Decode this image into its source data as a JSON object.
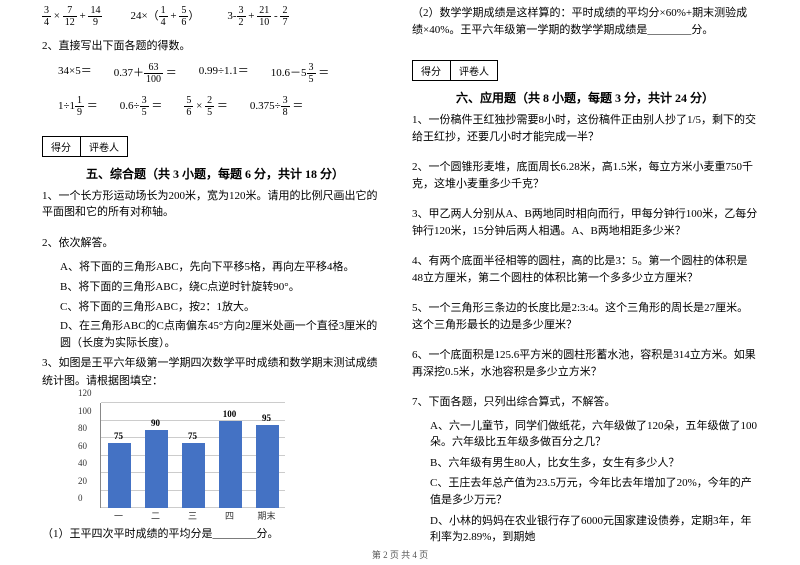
{
  "left": {
    "formulas_row1": [
      {
        "a_num": "3",
        "a_den": "4",
        "op1": "×",
        "b_num": "7",
        "b_den": "12",
        "op2": "+",
        "c_num": "14",
        "c_den": "9"
      },
      {
        "text_prefix": "24×（",
        "a_num": "1",
        "a_den": "4",
        "mid": " + ",
        "b_num": "5",
        "b_den": "6",
        "suffix": "）"
      },
      {
        "p1": "3-",
        "a_num": "3",
        "a_den": "2",
        "mid": " + ",
        "b_num": "21",
        "b_den": "10",
        "mid2": " - ",
        "c_num": "2",
        "c_den": "7"
      }
    ],
    "q2_title": "2、直接写出下面各题的得数。",
    "calc_row1": [
      "34×5＝",
      "0.37＋",
      "0.99÷1.1＝",
      "10.6－5"
    ],
    "calc_row1_frac1": {
      "num": "63",
      "den": "100"
    },
    "calc_row1_frac2": {
      "num": "3",
      "den": "5"
    },
    "calc_row2": [
      "1÷1",
      "0.6÷",
      "",
      "0.375÷"
    ],
    "calc_row2_fracA": {
      "num": "1",
      "den": "9"
    },
    "calc_row2_fracB": {
      "num": "3",
      "den": "5"
    },
    "calc_row2_fracC1": {
      "num": "5",
      "den": "6"
    },
    "calc_row2_fracC2": {
      "num": "2",
      "den": "5"
    },
    "calc_row2_fracD": {
      "num": "3",
      "den": "8"
    },
    "score_label1": "得分",
    "score_label2": "评卷人",
    "section5": "五、综合题（共 3 小题，每题 6 分，共计 18 分）",
    "q5_1": "1、一个长方形运动场长为200米，宽为120米。请用的比例尺画出它的平面图和它的所有对称轴。",
    "q5_2_title": "2、依次解答。",
    "q5_2_a": "A、将下面的三角形ABC，先向下平移5格，再向左平移4格。",
    "q5_2_b": "B、将下面的三角形ABC，绕C点逆时针旋转90°。",
    "q5_2_c": "C、将下面的三角形ABC，按2：1放大。",
    "q5_2_d": "D、在三角形ABC的C点南偏东45°方向2厘米处画一个直径3厘米的圆（长度为实际长度）。",
    "q5_3": "3、如图是王平六年级第一学期四次数学平时成绩和数学期末测试成绩统计图。请根据图填空：",
    "chart": {
      "type": "bar",
      "y_max": 120,
      "y_step": 20,
      "y_ticks": [
        0,
        20,
        40,
        60,
        80,
        100,
        120
      ],
      "bar_color": "#4472c4",
      "grid_color": "#cccccc",
      "axis_color": "#888888",
      "bars": [
        {
          "label": "一",
          "value": 75,
          "value_label": "75"
        },
        {
          "label": "二",
          "value": 90,
          "value_label": "90"
        },
        {
          "label": "三",
          "value": 75,
          "value_label": "75"
        },
        {
          "label": "四",
          "value": 100,
          "value_label": "100"
        },
        {
          "label": "期末",
          "value": 95,
          "value_label": "95"
        }
      ]
    },
    "q5_3_sub": "（1）王平四次平时成绩的平均分是________分。"
  },
  "right": {
    "top": "（2）数学学期成绩是这样算的：平时成绩的平均分×60%+期末测验成绩×40%。王平六年级第一学期的数学学期成绩是________分。",
    "section6": "六、应用题（共 8 小题，每题 3 分，共计 24 分）",
    "q1": "1、一份稿件王红独抄需要8小时，这份稿件正由别人抄了1/5，剩下的交给王红抄，还要几小时才能完成一半？",
    "q2": "2、一个圆锥形麦堆，底面周长6.28米，高1.5米，每立方米小麦重750千克，这堆小麦重多少千克？",
    "q3": "3、甲乙两人分别从A、B两地同时相向而行，甲每分钟行100米，乙每分钟行120米，15分钟后两人相遇。A、B两地相距多少米？",
    "q4": "4、有两个底面半径相等的圆柱，高的比是3：5。第一个圆柱的体积是48立方厘米，第二个圆柱的体积比第一个多多少立方厘米？",
    "q5": "5、一个三角形三条边的长度比是2:3:4。这个三角形的周长是27厘米。这个三角形最长的边是多少厘米？",
    "q6": "6、一个底面积是125.6平方米的圆柱形蓄水池，容积是314立方米。如果再深挖0.5米，水池容积是多少立方米？",
    "q7_title": "7、下面各题，只列出综合算式，不解答。",
    "q7_a": "A、六一儿童节，同学们做纸花，六年级做了120朵，五年级做了100朵。六年级比五年级多做百分之几？",
    "q7_b": "B、六年级有男生80人，比女生多，女生有多少人？",
    "q7_c": "C、王庄去年总产值为23.5万元，今年比去年增加了20%，今年的产值是多少万元？",
    "q7_d": "D、小林的妈妈在农业银行存了6000元国家建设债券，定期3年，年利率为2.89%，到期她"
  },
  "footer": "第 2 页 共 4 页"
}
